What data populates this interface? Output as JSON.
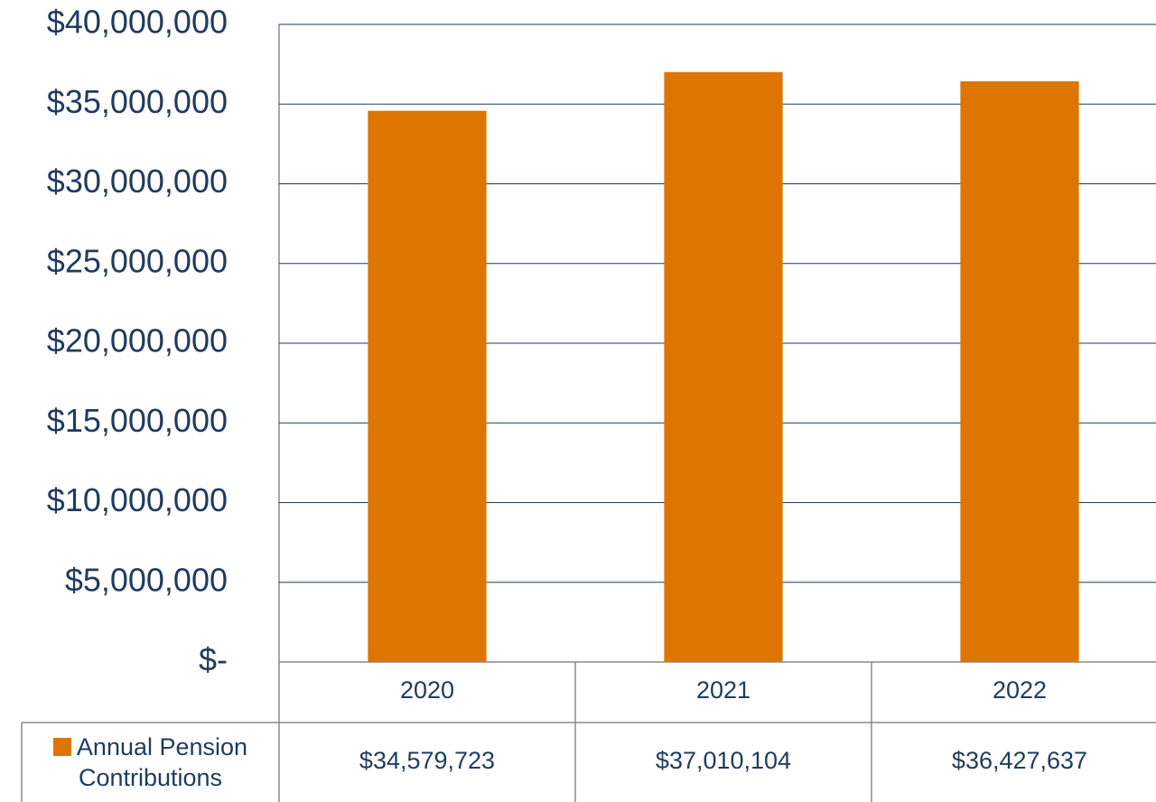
{
  "chart_data": {
    "type": "bar",
    "categories": [
      "2020",
      "2021",
      "2022"
    ],
    "series": [
      {
        "name": "Annual Pension Contributions",
        "color": "#dd7500",
        "values": [
          34579723,
          37010104,
          36427637
        ],
        "value_labels": [
          "$34,579,723",
          "$37,010,104",
          "$36,427,637"
        ]
      }
    ],
    "ylim": [
      0,
      40000000
    ],
    "yticks": [
      {
        "value": 0,
        "label": "$-"
      },
      {
        "value": 5000000,
        "label": "$5,000,000"
      },
      {
        "value": 10000000,
        "label": "$10,000,000"
      },
      {
        "value": 15000000,
        "label": "$15,000,000"
      },
      {
        "value": 20000000,
        "label": "$20,000,000"
      },
      {
        "value": 25000000,
        "label": "$25,000,000"
      },
      {
        "value": 30000000,
        "label": "$30,000,000"
      },
      {
        "value": 35000000,
        "label": "$35,000,000"
      },
      {
        "value": 40000000,
        "label": "$40,000,000"
      }
    ],
    "grid": true,
    "legend": "table"
  }
}
